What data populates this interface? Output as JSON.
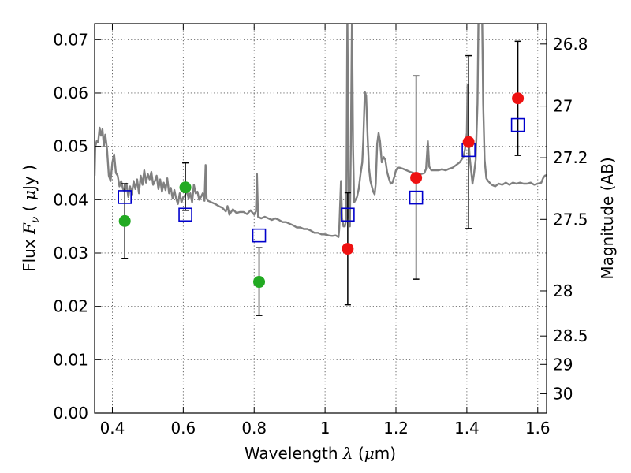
{
  "chart_data": {
    "type": "scatter",
    "xlabel": {
      "pre": "Wavelength  ",
      "lambda": "λ",
      "open": " (",
      "mu": "μ",
      "unit": "m)"
    },
    "ylabel": {
      "pre": "Flux  ",
      "var": "F",
      "sub": "ν",
      "open": "  ( ",
      "mu": "μ",
      "unit": "Jy )"
    },
    "ylabel_right": "Magnitude (AB)",
    "xlim": [
      0.35,
      1.625
    ],
    "ylim": [
      0.0,
      0.073
    ],
    "x_ticks": [
      {
        "v": 0.4,
        "label": "0.4"
      },
      {
        "v": 0.6,
        "label": "0.6"
      },
      {
        "v": 0.8,
        "label": "0.8"
      },
      {
        "v": 1.0,
        "label": "1"
      },
      {
        "v": 1.2,
        "label": "1.2"
      },
      {
        "v": 1.4,
        "label": "1.4"
      },
      {
        "v": 1.6,
        "label": "1.6"
      }
    ],
    "y_ticks": [
      {
        "v": 0.0,
        "label": "0.00"
      },
      {
        "v": 0.01,
        "label": "0.01"
      },
      {
        "v": 0.02,
        "label": "0.02"
      },
      {
        "v": 0.03,
        "label": "0.03"
      },
      {
        "v": 0.04,
        "label": "0.04"
      },
      {
        "v": 0.05,
        "label": "0.05"
      },
      {
        "v": 0.06,
        "label": "0.06"
      },
      {
        "v": 0.07,
        "label": "0.07"
      }
    ],
    "mag_ticks": [
      {
        "mag": 26.8,
        "label": "26.8"
      },
      {
        "mag": 27.0,
        "label": "27"
      },
      {
        "mag": 27.2,
        "label": "27.2"
      },
      {
        "mag": 27.5,
        "label": "27.5"
      },
      {
        "mag": 28.0,
        "label": "28"
      },
      {
        "mag": 28.5,
        "label": "28.5"
      },
      {
        "mag": 29.0,
        "label": "29"
      },
      {
        "mag": 30.0,
        "label": "30"
      }
    ],
    "grid": true,
    "model_spectrum": {
      "color": "#808080",
      "points": [
        [
          0.35,
          0.0445
        ],
        [
          0.352,
          0.05
        ],
        [
          0.356,
          0.051
        ],
        [
          0.36,
          0.0508
        ],
        [
          0.364,
          0.0535
        ],
        [
          0.368,
          0.052
        ],
        [
          0.372,
          0.0532
        ],
        [
          0.376,
          0.05
        ],
        [
          0.38,
          0.0522
        ],
        [
          0.385,
          0.0495
        ],
        [
          0.39,
          0.0445
        ],
        [
          0.395,
          0.0435
        ],
        [
          0.4,
          0.047
        ],
        [
          0.405,
          0.0485
        ],
        [
          0.41,
          0.045
        ],
        [
          0.415,
          0.0445
        ],
        [
          0.42,
          0.0425
        ],
        [
          0.425,
          0.0435
        ],
        [
          0.43,
          0.042
        ],
        [
          0.435,
          0.0415
        ],
        [
          0.44,
          0.043
        ],
        [
          0.445,
          0.0405
        ],
        [
          0.45,
          0.0425
        ],
        [
          0.455,
          0.041
        ],
        [
          0.46,
          0.0435
        ],
        [
          0.465,
          0.042
        ],
        [
          0.47,
          0.0438
        ],
        [
          0.475,
          0.0412
        ],
        [
          0.48,
          0.0445
        ],
        [
          0.485,
          0.0428
        ],
        [
          0.49,
          0.0455
        ],
        [
          0.495,
          0.0432
        ],
        [
          0.5,
          0.0448
        ],
        [
          0.505,
          0.0438
        ],
        [
          0.51,
          0.0452
        ],
        [
          0.515,
          0.0428
        ],
        [
          0.52,
          0.0435
        ],
        [
          0.525,
          0.0445
        ],
        [
          0.53,
          0.042
        ],
        [
          0.535,
          0.0438
        ],
        [
          0.54,
          0.0415
        ],
        [
          0.545,
          0.0432
        ],
        [
          0.55,
          0.0418
        ],
        [
          0.555,
          0.044
        ],
        [
          0.56,
          0.0412
        ],
        [
          0.565,
          0.0422
        ],
        [
          0.57,
          0.0402
        ],
        [
          0.575,
          0.0418
        ],
        [
          0.58,
          0.0402
        ],
        [
          0.585,
          0.0392
        ],
        [
          0.59,
          0.0412
        ],
        [
          0.595,
          0.0395
        ],
        [
          0.6,
          0.0405
        ],
        [
          0.605,
          0.0408
        ],
        [
          0.61,
          0.0418
        ],
        [
          0.615,
          0.0402
        ],
        [
          0.62,
          0.0412
        ],
        [
          0.625,
          0.0395
        ],
        [
          0.63,
          0.0428
        ],
        [
          0.635,
          0.0412
        ],
        [
          0.64,
          0.0415
        ],
        [
          0.645,
          0.04
        ],
        [
          0.65,
          0.0405
        ],
        [
          0.655,
          0.0412
        ],
        [
          0.66,
          0.0398
        ],
        [
          0.663,
          0.0465
        ],
        [
          0.666,
          0.0402
        ],
        [
          0.67,
          0.0398
        ],
        [
          0.68,
          0.0395
        ],
        [
          0.69,
          0.0392
        ],
        [
          0.7,
          0.0388
        ],
        [
          0.71,
          0.0385
        ],
        [
          0.72,
          0.0378
        ],
        [
          0.725,
          0.0388
        ],
        [
          0.73,
          0.0372
        ],
        [
          0.74,
          0.0382
        ],
        [
          0.75,
          0.0375
        ],
        [
          0.76,
          0.0377
        ],
        [
          0.77,
          0.0377
        ],
        [
          0.78,
          0.0373
        ],
        [
          0.79,
          0.038
        ],
        [
          0.8,
          0.0372
        ],
        [
          0.805,
          0.0378
        ],
        [
          0.808,
          0.0448
        ],
        [
          0.811,
          0.0368
        ],
        [
          0.82,
          0.0365
        ],
        [
          0.83,
          0.0368
        ],
        [
          0.84,
          0.0365
        ],
        [
          0.85,
          0.0362
        ],
        [
          0.86,
          0.0365
        ],
        [
          0.87,
          0.0362
        ],
        [
          0.88,
          0.0358
        ],
        [
          0.89,
          0.0358
        ],
        [
          0.9,
          0.0355
        ],
        [
          0.91,
          0.0352
        ],
        [
          0.92,
          0.0348
        ],
        [
          0.93,
          0.0348
        ],
        [
          0.94,
          0.0345
        ],
        [
          0.95,
          0.0345
        ],
        [
          0.96,
          0.0342
        ],
        [
          0.97,
          0.0338
        ],
        [
          0.98,
          0.0338
        ],
        [
          0.99,
          0.0335
        ],
        [
          1.0,
          0.0335
        ],
        [
          1.01,
          0.0333
        ],
        [
          1.02,
          0.0332
        ],
        [
          1.03,
          0.0333
        ],
        [
          1.038,
          0.033
        ],
        [
          1.04,
          0.0345
        ],
        [
          1.045,
          0.0435
        ],
        [
          1.048,
          0.0365
        ],
        [
          1.052,
          0.035
        ],
        [
          1.056,
          0.035
        ],
        [
          1.06,
          0.0365
        ],
        [
          1.063,
          0.075
        ],
        [
          1.067,
          0.0375
        ],
        [
          1.07,
          0.035
        ],
        [
          1.073,
          0.051
        ],
        [
          1.076,
          0.075
        ],
        [
          1.079,
          0.05
        ],
        [
          1.082,
          0.0395
        ],
        [
          1.09,
          0.0405
        ],
        [
          1.095,
          0.042
        ],
        [
          1.1,
          0.0448
        ],
        [
          1.105,
          0.047
        ],
        [
          1.108,
          0.0515
        ],
        [
          1.112,
          0.0602
        ],
        [
          1.116,
          0.0595
        ],
        [
          1.12,
          0.052
        ],
        [
          1.124,
          0.046
        ],
        [
          1.128,
          0.0435
        ],
        [
          1.132,
          0.0425
        ],
        [
          1.136,
          0.0415
        ],
        [
          1.14,
          0.041
        ],
        [
          1.143,
          0.043
        ],
        [
          1.147,
          0.0505
        ],
        [
          1.151,
          0.0525
        ],
        [
          1.155,
          0.051
        ],
        [
          1.16,
          0.047
        ],
        [
          1.165,
          0.048
        ],
        [
          1.17,
          0.0475
        ],
        [
          1.175,
          0.0452
        ],
        [
          1.18,
          0.044
        ],
        [
          1.185,
          0.043
        ],
        [
          1.19,
          0.0432
        ],
        [
          1.195,
          0.0442
        ],
        [
          1.2,
          0.0455
        ],
        [
          1.205,
          0.046
        ],
        [
          1.21,
          0.046
        ],
        [
          1.22,
          0.0458
        ],
        [
          1.23,
          0.0455
        ],
        [
          1.24,
          0.0452
        ],
        [
          1.25,
          0.045
        ],
        [
          1.26,
          0.0448
        ],
        [
          1.27,
          0.0448
        ],
        [
          1.28,
          0.045
        ],
        [
          1.285,
          0.0458
        ],
        [
          1.29,
          0.051
        ],
        [
          1.294,
          0.0462
        ],
        [
          1.3,
          0.0455
        ],
        [
          1.31,
          0.0455
        ],
        [
          1.32,
          0.0455
        ],
        [
          1.33,
          0.0457
        ],
        [
          1.34,
          0.0455
        ],
        [
          1.35,
          0.0458
        ],
        [
          1.36,
          0.046
        ],
        [
          1.37,
          0.0465
        ],
        [
          1.38,
          0.047
        ],
        [
          1.39,
          0.048
        ],
        [
          1.395,
          0.0495
        ],
        [
          1.4,
          0.0525
        ],
        [
          1.402,
          0.0615
        ],
        [
          1.404,
          0.0525
        ],
        [
          1.408,
          0.048
        ],
        [
          1.412,
          0.0455
        ],
        [
          1.416,
          0.043
        ],
        [
          1.42,
          0.0448
        ],
        [
          1.425,
          0.0475
        ],
        [
          1.43,
          0.058
        ],
        [
          1.433,
          0.075
        ],
        [
          1.443,
          0.075
        ],
        [
          1.446,
          0.058
        ],
        [
          1.45,
          0.0475
        ],
        [
          1.455,
          0.044
        ],
        [
          1.46,
          0.0435
        ],
        [
          1.47,
          0.0428
        ],
        [
          1.48,
          0.0425
        ],
        [
          1.49,
          0.043
        ],
        [
          1.5,
          0.0428
        ],
        [
          1.51,
          0.0432
        ],
        [
          1.52,
          0.0428
        ],
        [
          1.53,
          0.0432
        ],
        [
          1.54,
          0.043
        ],
        [
          1.55,
          0.0432
        ],
        [
          1.56,
          0.043
        ],
        [
          1.57,
          0.043
        ],
        [
          1.58,
          0.0432
        ],
        [
          1.59,
          0.0428
        ],
        [
          1.6,
          0.043
        ],
        [
          1.61,
          0.0432
        ],
        [
          1.615,
          0.044
        ],
        [
          1.62,
          0.0445
        ],
        [
          1.625,
          0.0446
        ]
      ]
    },
    "model_photometry": {
      "marker": "open-square",
      "color": "#0000cc",
      "points": [
        {
          "x": 0.435,
          "y": 0.0405
        },
        {
          "x": 0.606,
          "y": 0.0372
        },
        {
          "x": 0.814,
          "y": 0.0333
        },
        {
          "x": 1.064,
          "y": 0.0372
        },
        {
          "x": 1.257,
          "y": 0.0404
        },
        {
          "x": 1.405,
          "y": 0.0493
        },
        {
          "x": 1.544,
          "y": 0.054
        }
      ]
    },
    "observed_optical": {
      "marker": "filled-circle",
      "color": "#22aa22",
      "points": [
        {
          "x": 0.435,
          "y": 0.036,
          "lo": 0.029,
          "hi": 0.043
        },
        {
          "x": 0.606,
          "y": 0.0423,
          "lo": 0.038,
          "hi": 0.0469
        },
        {
          "x": 0.814,
          "y": 0.0246,
          "lo": 0.0183,
          "hi": 0.031
        }
      ]
    },
    "observed_nir": {
      "marker": "filled-circle",
      "color": "#ee1111",
      "points": [
        {
          "x": 1.064,
          "y": 0.0308,
          "lo": 0.0203,
          "hi": 0.0413
        },
        {
          "x": 1.257,
          "y": 0.0441,
          "lo": 0.0251,
          "hi": 0.0632
        },
        {
          "x": 1.405,
          "y": 0.0508,
          "lo": 0.0346,
          "hi": 0.067
        },
        {
          "x": 1.544,
          "y": 0.059,
          "lo": 0.0483,
          "hi": 0.0697
        }
      ]
    }
  }
}
